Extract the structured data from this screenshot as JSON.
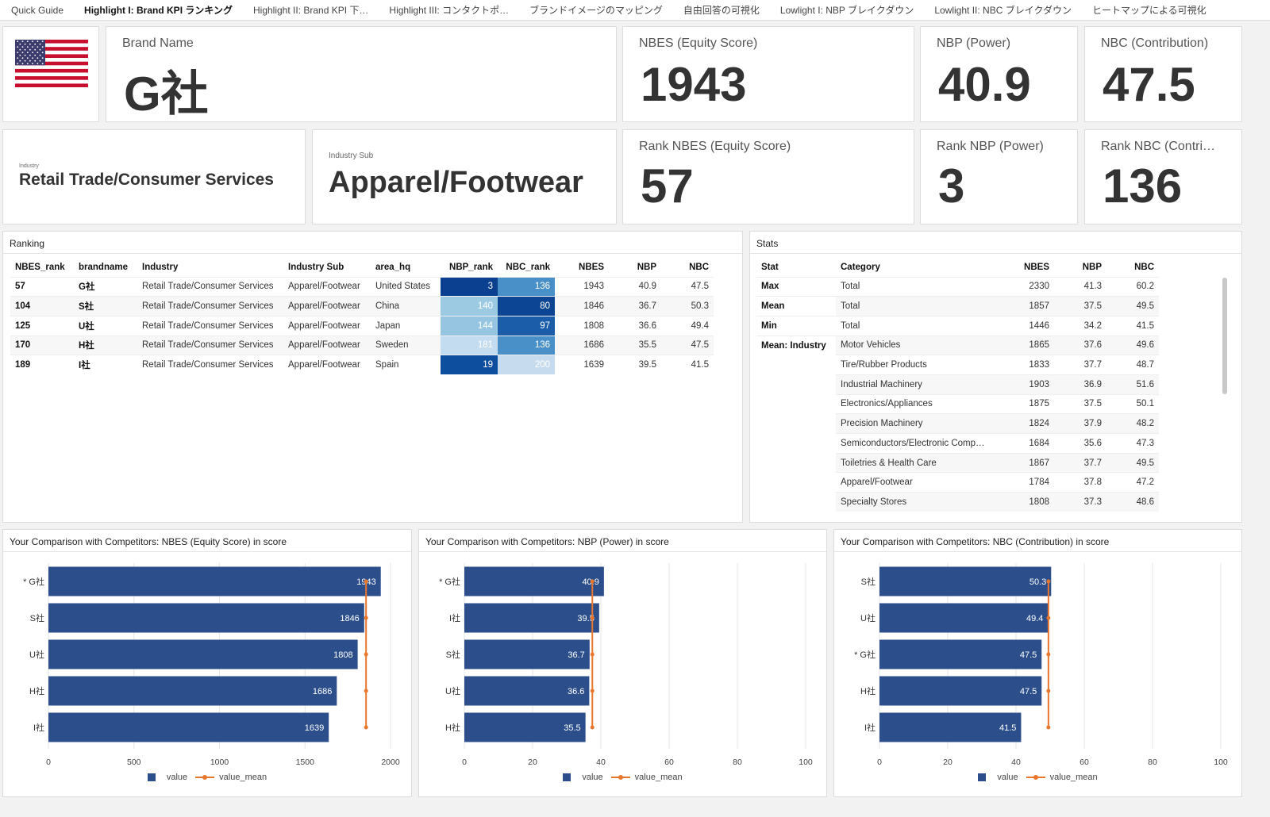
{
  "tabs": [
    "Quick Guide",
    "Highlight I: Brand KPI ランキング",
    "Highlight II: Brand KPI 下…",
    "Highlight III: コンタクトポ…",
    "ブランドイメージのマッピング",
    "自由回答の可視化",
    "Lowlight I: NBP ブレイクダウン",
    "Lowlight II: NBC ブレイクダウン",
    "ヒートマップによる可視化"
  ],
  "active_tab": 1,
  "brand": {
    "label": "Brand Name",
    "value": "G社"
  },
  "kpis": {
    "nbes": {
      "label": "NBES (Equity Score)",
      "value": "1943"
    },
    "nbp": {
      "label": "NBP (Power)",
      "value": "40.9"
    },
    "nbc": {
      "label": "NBC (Contribution)",
      "value": "47.5"
    },
    "rank_nbes": {
      "label": "Rank NBES (Equity Score)",
      "value": "57"
    },
    "rank_nbp": {
      "label": "Rank NBP (Power)",
      "value": "3"
    },
    "rank_nbc": {
      "label": "Rank NBC (Contri…",
      "value": "136"
    }
  },
  "industry": {
    "label": "Industry",
    "value": "Retail Trade/Consumer Services"
  },
  "industry_sub": {
    "label": "Industry Sub",
    "value": "Apparel/Footwear"
  },
  "ranking": {
    "title": "Ranking",
    "columns": [
      "NBES_rank",
      "brandname",
      "Industry",
      "Industry Sub",
      "area_hq",
      "NBP_rank",
      "NBC_rank",
      "NBES",
      "NBP",
      "NBC"
    ],
    "rows": [
      {
        "nbes_rank": "57",
        "brand": "G社",
        "industry": "Retail Trade/Consumer Services",
        "sub": "Apparel/Footwear",
        "area": "United States",
        "nbp_rank": "3",
        "nbc_rank": "136",
        "nbes": "1943",
        "nbp": "40.9",
        "nbc": "47.5",
        "nbp_color": "#0b3f8f",
        "nbc_color": "#4a90c8"
      },
      {
        "nbes_rank": "104",
        "brand": "S社",
        "industry": "Retail Trade/Consumer Services",
        "sub": "Apparel/Footwear",
        "area": "China",
        "nbp_rank": "140",
        "nbc_rank": "80",
        "nbes": "1846",
        "nbp": "36.7",
        "nbc": "50.3",
        "nbp_color": "#9ccae3",
        "nbc_color": "#0b4593"
      },
      {
        "nbes_rank": "125",
        "brand": "U社",
        "industry": "Retail Trade/Consumer Services",
        "sub": "Apparel/Footwear",
        "area": "Japan",
        "nbp_rank": "144",
        "nbc_rank": "97",
        "nbes": "1808",
        "nbp": "36.6",
        "nbc": "49.4",
        "nbp_color": "#96c5e1",
        "nbc_color": "#1b5da8"
      },
      {
        "nbes_rank": "170",
        "brand": "H社",
        "industry": "Retail Trade/Consumer Services",
        "sub": "Apparel/Footwear",
        "area": "Sweden",
        "nbp_rank": "181",
        "nbc_rank": "136",
        "nbes": "1686",
        "nbp": "35.5",
        "nbc": "47.5",
        "nbp_color": "#c4dcef",
        "nbc_color": "#4a90c8"
      },
      {
        "nbes_rank": "189",
        "brand": "I社",
        "industry": "Retail Trade/Consumer Services",
        "sub": "Apparel/Footwear",
        "area": "Spain",
        "nbp_rank": "19",
        "nbc_rank": "200",
        "nbes": "1639",
        "nbp": "39.5",
        "nbc": "41.5",
        "nbp_color": "#0d4e9e",
        "nbc_color": "#c6dcee"
      }
    ]
  },
  "stats": {
    "title": "Stats",
    "columns": [
      "Stat",
      "Category",
      "NBES",
      "NBP",
      "NBC"
    ],
    "rows": [
      {
        "stat": "Max",
        "category": "Total",
        "nbes": "2330",
        "nbp": "41.3",
        "nbc": "60.2"
      },
      {
        "stat": "Mean",
        "category": "Total",
        "nbes": "1857",
        "nbp": "37.5",
        "nbc": "49.5"
      },
      {
        "stat": "Min",
        "category": "Total",
        "nbes": "1446",
        "nbp": "34.2",
        "nbc": "41.5"
      },
      {
        "stat": "Mean: Industry",
        "category": "Motor Vehicles",
        "nbes": "1865",
        "nbp": "37.6",
        "nbc": "49.6"
      },
      {
        "stat": "",
        "category": "Tire/Rubber Products",
        "nbes": "1833",
        "nbp": "37.7",
        "nbc": "48.7"
      },
      {
        "stat": "",
        "category": "Industrial Machinery",
        "nbes": "1903",
        "nbp": "36.9",
        "nbc": "51.6"
      },
      {
        "stat": "",
        "category": "Electronics/Appliances",
        "nbes": "1875",
        "nbp": "37.5",
        "nbc": "50.1"
      },
      {
        "stat": "",
        "category": "Precision Machinery",
        "nbes": "1824",
        "nbp": "37.9",
        "nbc": "48.2"
      },
      {
        "stat": "",
        "category": "Semiconductors/Electronic Comp…",
        "nbes": "1684",
        "nbp": "35.6",
        "nbc": "47.3"
      },
      {
        "stat": "",
        "category": "Toiletries & Health Care",
        "nbes": "1867",
        "nbp": "37.7",
        "nbc": "49.5"
      },
      {
        "stat": "",
        "category": "Apparel/Footwear",
        "nbes": "1784",
        "nbp": "37.8",
        "nbc": "47.2"
      },
      {
        "stat": "",
        "category": "Specialty Stores",
        "nbes": "1808",
        "nbp": "37.3",
        "nbc": "48.6"
      }
    ]
  },
  "colors": {
    "bar": "#2c4f8c",
    "mean": "#e8762c",
    "grid": "#e6e6e6"
  },
  "legend": {
    "value": "value",
    "value_mean": "value_mean"
  },
  "chart_data": [
    {
      "type": "bar",
      "title": "Your Comparison with Competitors: NBES (Equity Score) in score",
      "categories": [
        "* G社",
        "S社",
        "U社",
        "H社",
        "I社"
      ],
      "values": [
        1943,
        1846,
        1808,
        1686,
        1639
      ],
      "labels": [
        "1943",
        "1846",
        "1808",
        "1686",
        "1639"
      ],
      "mean": 1857,
      "xlim": [
        0,
        2000
      ],
      "ticks": [
        0,
        500,
        1000,
        1500,
        2000
      ]
    },
    {
      "type": "bar",
      "title": "Your Comparison with Competitors: NBP (Power) in score",
      "categories": [
        "* G社",
        "I社",
        "S社",
        "U社",
        "H社"
      ],
      "values": [
        40.9,
        39.5,
        36.7,
        36.6,
        35.5
      ],
      "labels": [
        "40.9",
        "39.5",
        "36.7",
        "36.6",
        "35.5"
      ],
      "mean": 37.5,
      "xlim": [
        0,
        100
      ],
      "ticks": [
        0,
        20,
        40,
        60,
        80,
        100
      ]
    },
    {
      "type": "bar",
      "title": "Your Comparison with Competitors: NBC (Contribution) in score",
      "categories": [
        "S社",
        "U社",
        "* G社",
        "H社",
        "I社"
      ],
      "values": [
        50.3,
        49.4,
        47.5,
        47.5,
        41.5
      ],
      "labels": [
        "50.3",
        "49.4",
        "47.5",
        "47.5",
        "41.5"
      ],
      "mean": 49.5,
      "xlim": [
        0,
        100
      ],
      "ticks": [
        0,
        20,
        40,
        60,
        80,
        100
      ]
    }
  ]
}
